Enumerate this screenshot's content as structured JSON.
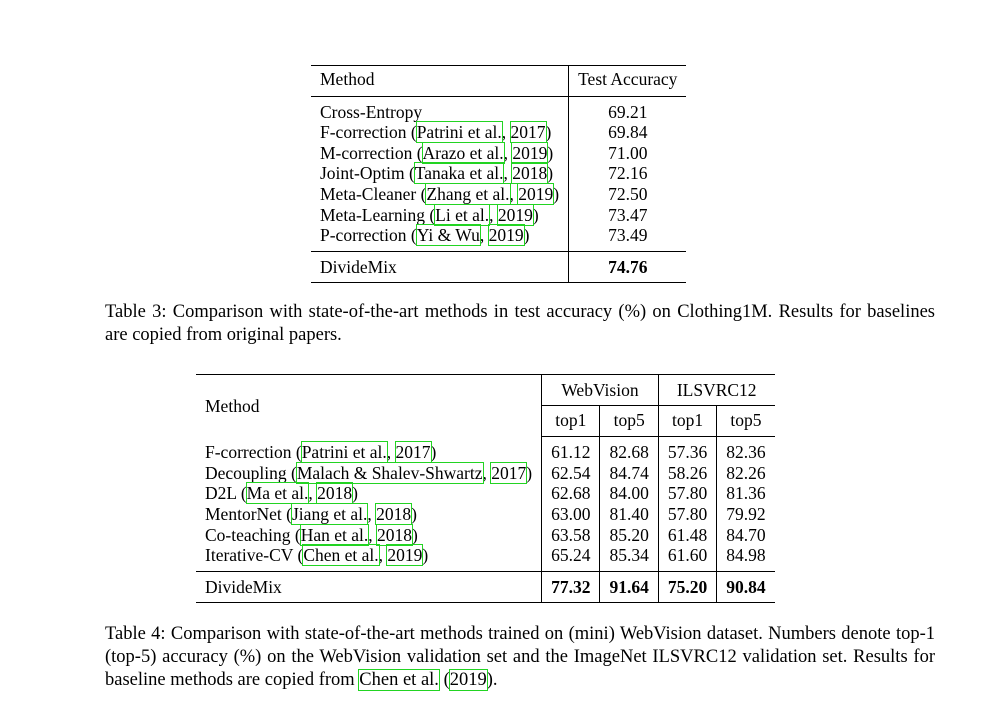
{
  "table3": {
    "headers": [
      "Method",
      "Test Accuracy"
    ],
    "rows": [
      {
        "method": "Cross-Entropy",
        "cite_author": "",
        "cite_year": "",
        "value": "69.21"
      },
      {
        "method": "F-correction",
        "cite_author": "Patrini et al.",
        "cite_year": "2017",
        "value": "69.84"
      },
      {
        "method": "M-correction",
        "cite_author": "Arazo et al.",
        "cite_year": "2019",
        "value": "71.00"
      },
      {
        "method": "Joint-Optim",
        "cite_author": "Tanaka et al.",
        "cite_year": "2018",
        "value": "72.16"
      },
      {
        "method": "Meta-Cleaner",
        "cite_author": "Zhang et al.",
        "cite_year": "2019",
        "value": "72.50"
      },
      {
        "method": "Meta-Learning",
        "cite_author": "Li et al.",
        "cite_year": "2019",
        "value": "73.47"
      },
      {
        "method": "P-correction",
        "cite_author": "Yi & Wu",
        "cite_year": "2019",
        "value": "73.49"
      }
    ],
    "ours": {
      "method": "DivideMix",
      "value": "74.76"
    },
    "caption": "Table 3: Comparison with state-of-the-art methods in test accuracy (%) on Clothing1M. Results for baselines are copied from original papers."
  },
  "table4": {
    "method_header": "Method",
    "group1": "WebVision",
    "group2": "ILSVRC12",
    "sub": [
      "top1",
      "top5",
      "top1",
      "top5"
    ],
    "rows": [
      {
        "method": "F-correction",
        "cite_author": "Patrini et al.",
        "cite_year": "2017",
        "values": [
          "61.12",
          "82.68",
          "57.36",
          "82.36"
        ]
      },
      {
        "method": "Decoupling",
        "cite_author": "Malach & Shalev-Shwartz",
        "cite_year": "2017",
        "values": [
          "62.54",
          "84.74",
          "58.26",
          "82.26"
        ]
      },
      {
        "method": "D2L",
        "cite_author": "Ma et al.",
        "cite_year": "2018",
        "values": [
          "62.68",
          "84.00",
          "57.80",
          "81.36"
        ]
      },
      {
        "method": "MentorNet",
        "cite_author": "Jiang et al.",
        "cite_year": "2018",
        "values": [
          "63.00",
          "81.40",
          "57.80",
          "79.92"
        ]
      },
      {
        "method": "Co-teaching",
        "cite_author": "Han et al.",
        "cite_year": "2018",
        "values": [
          "63.58",
          "85.20",
          "61.48",
          "84.70"
        ]
      },
      {
        "method": "Iterative-CV",
        "cite_author": "Chen et al.",
        "cite_year": "2019",
        "values": [
          "65.24",
          "85.34",
          "61.60",
          "84.98"
        ]
      }
    ],
    "ours": {
      "method": "DivideMix",
      "values": [
        "77.32",
        "91.64",
        "75.20",
        "90.84"
      ]
    },
    "caption_text": "Table 4: Comparison with state-of-the-art methods trained on (mini) WebVision dataset. Numbers denote top-1 (top-5) accuracy (%) on the WebVision validation set and the ImageNet ILSVRC12 validation set. Results for baseline methods are copied from",
    "caption_cite_author": "Chen et al.",
    "caption_cite_year": "2019"
  }
}
